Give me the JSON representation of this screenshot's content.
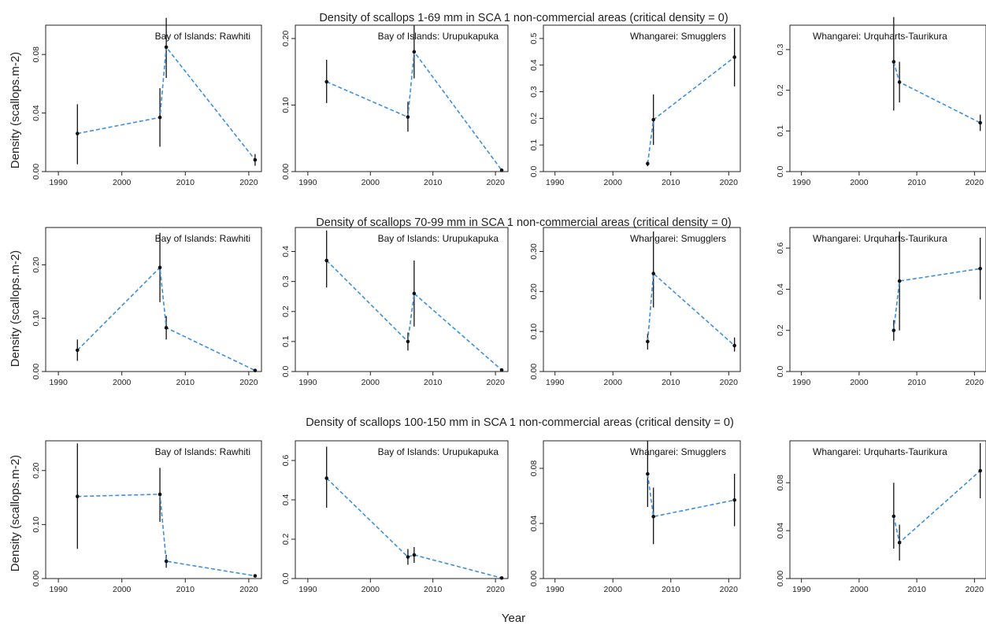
{
  "figure": {
    "xlabel": "Year",
    "ylabel": "Density (scallops.m-2)"
  },
  "colors": {
    "series_line": "#3d8fe0",
    "error_bar": "#111111",
    "point": "#111111",
    "axis": "#222222"
  },
  "rows": [
    {
      "title": "Density of scallops 1-69 mm in SCA 1 non-commercial areas (critical density = 0)"
    },
    {
      "title": "Density of scallops 70-99 mm in SCA 1 non-commercial areas (critical density = 0)"
    },
    {
      "title": "Density of scallops 100-150 mm in SCA 1 non-commercial areas (critical density = 0)"
    }
  ],
  "chart_data": [
    {
      "type": "line",
      "row": 0,
      "col": 0,
      "title": "Bay of Islands: Rawhiti",
      "x": [
        1993,
        2006,
        2007,
        2021
      ],
      "y": [
        0.026,
        0.037,
        0.085,
        0.008
      ],
      "y_low": [
        0.005,
        0.017,
        0.064,
        0.004
      ],
      "y_high": [
        0.046,
        0.057,
        0.105,
        0.012
      ],
      "xlim": [
        1988,
        2022
      ],
      "ylim": [
        0,
        0.1
      ],
      "xticks": [
        1990,
        2000,
        2010,
        2020
      ],
      "yticks": [
        0,
        0.04,
        0.08
      ],
      "ytick_labels": [
        "0.00",
        "0.04",
        "0.08"
      ]
    },
    {
      "type": "line",
      "row": 0,
      "col": 1,
      "title": "Bay of Islands: Urupukapuka",
      "x": [
        1993,
        2006,
        2007,
        2021
      ],
      "y": [
        0.135,
        0.082,
        0.18,
        0.002
      ],
      "y_low": [
        0.103,
        0.06,
        0.14,
        0.001
      ],
      "y_high": [
        0.168,
        0.105,
        0.22,
        0.004
      ],
      "xlim": [
        1988,
        2022
      ],
      "ylim": [
        0,
        0.22
      ],
      "xticks": [
        1990,
        2000,
        2010,
        2020
      ],
      "yticks": [
        0,
        0.1,
        0.2
      ],
      "ytick_labels": [
        "0.00",
        "0.10",
        "0.20"
      ]
    },
    {
      "type": "line",
      "row": 0,
      "col": 2,
      "title": "Whangarei: Smugglers",
      "x": [
        2006,
        2007,
        2021
      ],
      "y": [
        0.03,
        0.195,
        0.43
      ],
      "y_low": [
        0.02,
        0.1,
        0.32
      ],
      "y_high": [
        0.04,
        0.29,
        0.54
      ],
      "xlim": [
        1988,
        2022
      ],
      "ylim": [
        0,
        0.55
      ],
      "xticks": [
        1990,
        2000,
        2010,
        2020
      ],
      "yticks": [
        0,
        0.1,
        0.2,
        0.3,
        0.4,
        0.5
      ],
      "ytick_labels": [
        "0.0",
        "0.1",
        "0.2",
        "0.3",
        "0.4",
        "0.5"
      ]
    },
    {
      "type": "line",
      "row": 0,
      "col": 3,
      "title": "Whangarei: Urquharts-Taurikura",
      "x": [
        2006,
        2007,
        2021
      ],
      "y": [
        0.27,
        0.22,
        0.12
      ],
      "y_low": [
        0.15,
        0.17,
        0.1
      ],
      "y_high": [
        0.38,
        0.27,
        0.14
      ],
      "xlim": [
        1988,
        2022
      ],
      "ylim": [
        0,
        0.36
      ],
      "xticks": [
        1990,
        2000,
        2010,
        2020
      ],
      "yticks": [
        0,
        0.1,
        0.2,
        0.3
      ],
      "ytick_labels": [
        "0.0",
        "0.1",
        "0.2",
        "0.3"
      ]
    },
    {
      "type": "line",
      "row": 1,
      "col": 0,
      "title": "Bay of Islands: Rawhiti",
      "x": [
        1993,
        2006,
        2007,
        2021
      ],
      "y": [
        0.04,
        0.195,
        0.082,
        0.002
      ],
      "y_low": [
        0.02,
        0.13,
        0.06,
        0.001
      ],
      "y_high": [
        0.06,
        0.26,
        0.104,
        0.004
      ],
      "xlim": [
        1988,
        2022
      ],
      "ylim": [
        0,
        0.27
      ],
      "xticks": [
        1990,
        2000,
        2010,
        2020
      ],
      "yticks": [
        0,
        0.1,
        0.2
      ],
      "ytick_labels": [
        "0.00",
        "0.10",
        "0.20"
      ]
    },
    {
      "type": "line",
      "row": 1,
      "col": 1,
      "title": "Bay of Islands: Urupukapuka",
      "x": [
        1993,
        2006,
        2007,
        2021
      ],
      "y": [
        0.37,
        0.1,
        0.26,
        0.005
      ],
      "y_low": [
        0.28,
        0.07,
        0.15,
        0.002
      ],
      "y_high": [
        0.47,
        0.13,
        0.37,
        0.008
      ],
      "xlim": [
        1988,
        2022
      ],
      "ylim": [
        0,
        0.48
      ],
      "xticks": [
        1990,
        2000,
        2010,
        2020
      ],
      "yticks": [
        0,
        0.1,
        0.2,
        0.3,
        0.4
      ],
      "ytick_labels": [
        "0.0",
        "0.1",
        "0.2",
        "0.3",
        "0.4"
      ]
    },
    {
      "type": "line",
      "row": 1,
      "col": 2,
      "title": "Whangarei: Smugglers",
      "x": [
        2006,
        2007,
        2021
      ],
      "y": [
        0.075,
        0.245,
        0.065
      ],
      "y_low": [
        0.055,
        0.16,
        0.05
      ],
      "y_high": [
        0.095,
        0.35,
        0.085
      ],
      "xlim": [
        1988,
        2022
      ],
      "ylim": [
        0,
        0.36
      ],
      "xticks": [
        1990,
        2000,
        2010,
        2020
      ],
      "yticks": [
        0,
        0.1,
        0.2,
        0.3
      ],
      "ytick_labels": [
        "0.00",
        "0.10",
        "0.20",
        "0.30"
      ]
    },
    {
      "type": "line",
      "row": 1,
      "col": 3,
      "title": "Whangarei: Urquharts-Taurikura",
      "x": [
        2006,
        2007,
        2021
      ],
      "y": [
        0.2,
        0.44,
        0.5
      ],
      "y_low": [
        0.15,
        0.2,
        0.35
      ],
      "y_high": [
        0.25,
        0.68,
        0.65
      ],
      "xlim": [
        1988,
        2022
      ],
      "ylim": [
        0,
        0.7
      ],
      "xticks": [
        1990,
        2000,
        2010,
        2020
      ],
      "yticks": [
        0,
        0.2,
        0.4,
        0.6
      ],
      "ytick_labels": [
        "0.0",
        "0.2",
        "0.4",
        "0.6"
      ]
    },
    {
      "type": "line",
      "row": 2,
      "col": 0,
      "title": "Bay of Islands: Rawhiti",
      "x": [
        1993,
        2006,
        2007,
        2021
      ],
      "y": [
        0.152,
        0.156,
        0.032,
        0.005
      ],
      "y_low": [
        0.055,
        0.105,
        0.02,
        0.003
      ],
      "y_high": [
        0.25,
        0.205,
        0.044,
        0.007
      ],
      "xlim": [
        1988,
        2022
      ],
      "ylim": [
        0,
        0.255
      ],
      "xticks": [
        1990,
        2000,
        2010,
        2020
      ],
      "yticks": [
        0,
        0.1,
        0.2
      ],
      "ytick_labels": [
        "0.00",
        "0.10",
        "0.20"
      ]
    },
    {
      "type": "line",
      "row": 2,
      "col": 1,
      "title": "Bay of Islands: Urupukapuka",
      "x": [
        1993,
        2006,
        2007,
        2021
      ],
      "y": [
        0.51,
        0.11,
        0.12,
        0.003
      ],
      "y_low": [
        0.36,
        0.07,
        0.08,
        0.001
      ],
      "y_high": [
        0.67,
        0.15,
        0.16,
        0.005
      ],
      "xlim": [
        1988,
        2022
      ],
      "ylim": [
        0,
        0.7
      ],
      "xticks": [
        1990,
        2000,
        2010,
        2020
      ],
      "yticks": [
        0,
        0.2,
        0.4,
        0.6
      ],
      "ytick_labels": [
        "0.0",
        "0.2",
        "0.4",
        "0.6"
      ]
    },
    {
      "type": "line",
      "row": 2,
      "col": 2,
      "title": "Whangarei: Smugglers",
      "x": [
        2006,
        2007,
        2021
      ],
      "y": [
        0.076,
        0.045,
        0.057
      ],
      "y_low": [
        0.052,
        0.025,
        0.038
      ],
      "y_high": [
        0.1,
        0.066,
        0.076
      ],
      "xlim": [
        1988,
        2022
      ],
      "ylim": [
        0,
        0.1
      ],
      "xticks": [
        1990,
        2000,
        2010,
        2020
      ],
      "yticks": [
        0,
        0.04,
        0.08
      ],
      "ytick_labels": [
        "0.00",
        "0.04",
        "0.08"
      ]
    },
    {
      "type": "line",
      "row": 2,
      "col": 3,
      "title": "Whangarei: Urquharts-Taurikura",
      "x": [
        2006,
        2007,
        2021
      ],
      "y": [
        0.052,
        0.03,
        0.09
      ],
      "y_low": [
        0.025,
        0.015,
        0.067
      ],
      "y_high": [
        0.08,
        0.045,
        0.113
      ],
      "xlim": [
        1988,
        2022
      ],
      "ylim": [
        0,
        0.115
      ],
      "xticks": [
        1990,
        2000,
        2010,
        2020
      ],
      "yticks": [
        0,
        0.04,
        0.08
      ],
      "ytick_labels": [
        "0.00",
        "0.04",
        "0.08"
      ]
    }
  ]
}
